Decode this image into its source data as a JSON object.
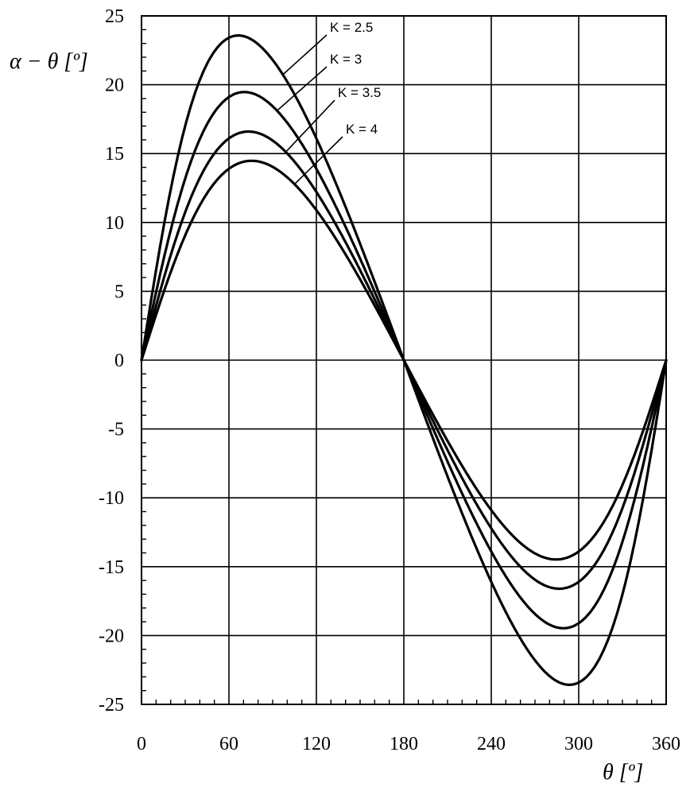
{
  "chart_data": {
    "type": "line",
    "xlabel": "θ [º]",
    "ylabel": "α − θ [º]",
    "xlim": [
      0,
      360
    ],
    "ylim": [
      -25,
      25
    ],
    "x_ticks": [
      "0",
      "60",
      "120",
      "180",
      "240",
      "300",
      "360"
    ],
    "y_ticks": [
      "25",
      "20",
      "15",
      "10",
      "5",
      "0",
      "-5",
      "-10",
      "-15",
      "-20",
      "-25"
    ],
    "grid": true,
    "series": [
      {
        "name": "K = 2.5",
        "K": 2.5
      },
      {
        "name": "K = 3",
        "K": 3
      },
      {
        "name": "K = 3.5",
        "K": 3.5
      },
      {
        "name": "K = 4",
        "K": 4
      }
    ],
    "x": [
      0,
      15,
      30,
      45,
      60,
      75,
      90,
      105,
      120,
      135,
      150,
      165,
      180,
      195,
      210,
      225,
      240,
      255,
      270,
      285,
      300,
      315,
      330,
      345,
      360
    ],
    "values": {
      "K = 2.5": [
        0,
        9.9,
        17.0,
        21.5,
        23.4,
        23.2,
        21.1,
        17.8,
        13.9,
        9.8,
        5.9,
        2.6,
        0,
        -2.6,
        -5.9,
        -9.8,
        -13.9,
        -17.8,
        -21.1,
        -23.2,
        -23.4,
        -21.5,
        -17.0,
        -9.9,
        0
      ],
      "K = 3": [
        0,
        7.7,
        13.4,
        17.1,
        19.1,
        19.3,
        17.9,
        15.3,
        12.1,
        8.6,
        5.2,
        2.3,
        0,
        -2.3,
        -5.2,
        -8.6,
        -12.1,
        -15.3,
        -17.9,
        -19.3,
        -19.1,
        -17.1,
        -13.4,
        -7.7,
        0
      ],
      "K = 3.5": [
        0,
        6.3,
        11.0,
        14.2,
        16.0,
        16.5,
        15.5,
        13.3,
        10.7,
        7.6,
        4.6,
        2.0,
        0,
        -2.0,
        -4.6,
        -7.6,
        -10.7,
        -13.3,
        -15.5,
        -16.5,
        -16.0,
        -14.2,
        -11.0,
        -6.3,
        0
      ],
      "K = 4": [
        0,
        5.3,
        9.3,
        12.1,
        13.8,
        14.3,
        13.6,
        11.8,
        9.5,
        6.8,
        4.1,
        1.9,
        0,
        -1.9,
        -4.1,
        -6.8,
        -9.5,
        -11.8,
        -13.6,
        -14.3,
        -13.8,
        -12.1,
        -9.3,
        -5.3,
        0
      ]
    }
  }
}
